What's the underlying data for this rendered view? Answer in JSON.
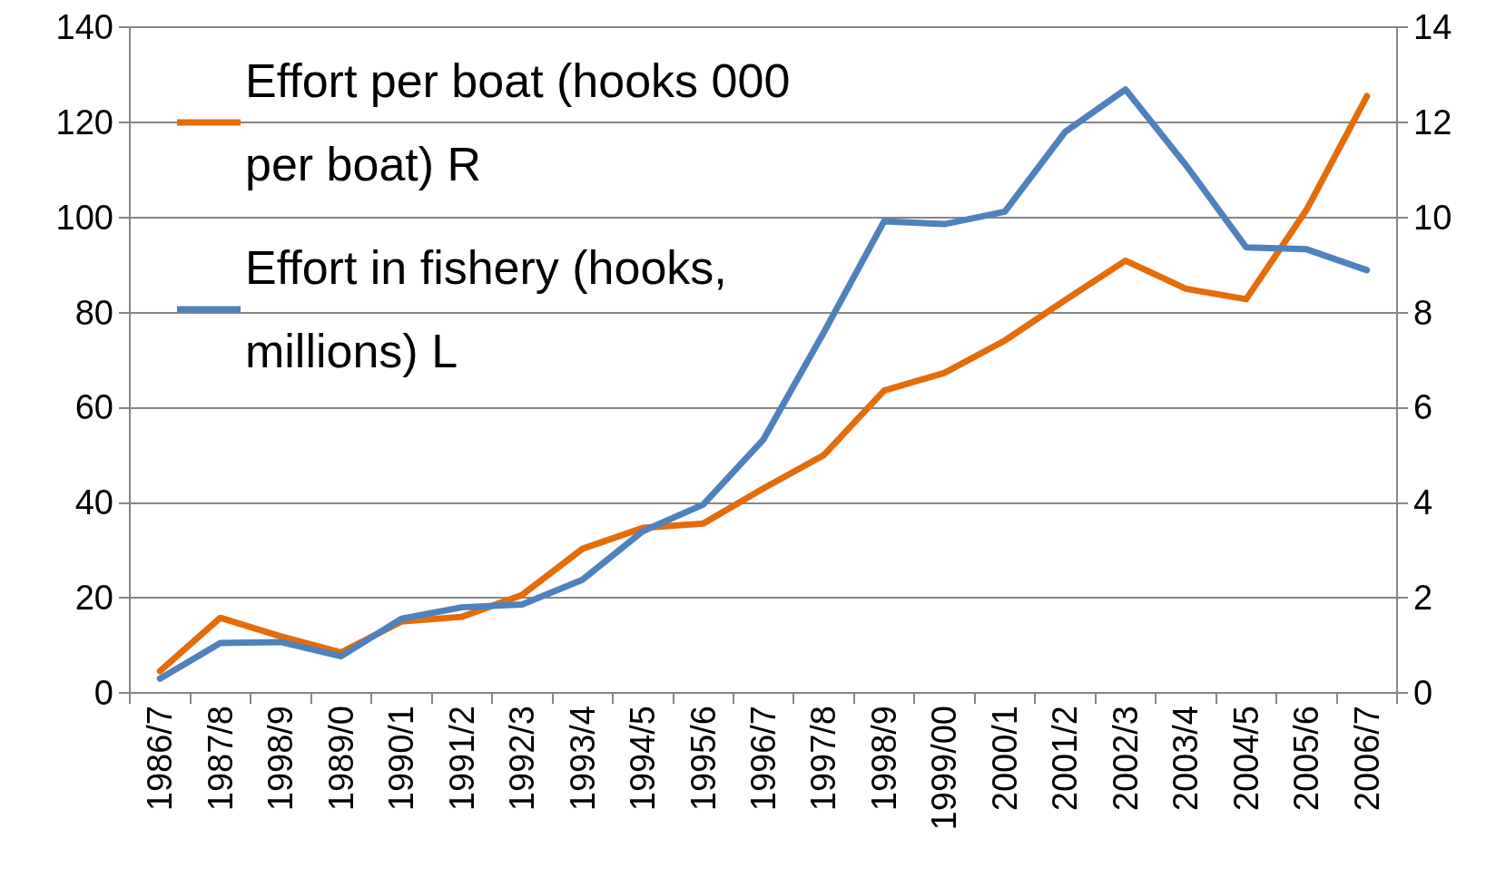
{
  "chart_data": {
    "type": "line",
    "categories": [
      "1986/7",
      "1987/8",
      "1998/9",
      "1989/0",
      "1990/1",
      "1991/2",
      "1992/3",
      "1993/4",
      "1994/5",
      "1995/6",
      "1996/7",
      "1997/8",
      "1998/9",
      "1999/00",
      "2000/1",
      "2001/2",
      "2002/3",
      "2003/4",
      "2004/5",
      "2005/6",
      "2006/7"
    ],
    "series": [
      {
        "name": "Effort per boat (hooks 000 per boat) R",
        "color": "#e46c0a",
        "axis": "y2",
        "values": [
          0.46,
          1.58,
          1.19,
          0.85,
          1.5,
          1.6,
          2.06,
          3.03,
          3.47,
          3.56,
          4.3,
          5.0,
          6.36,
          6.73,
          7.41,
          8.26,
          9.09,
          8.5,
          8.28,
          10.16,
          12.55
        ]
      },
      {
        "name": "Effort in fishery (hooks, millions) L",
        "color": "#4f81bd",
        "axis": "y",
        "values": [
          3,
          10.5,
          10.7,
          7.7,
          15.6,
          18,
          18.6,
          23.8,
          34,
          39.6,
          53.3,
          75.8,
          99.2,
          98.6,
          101.2,
          118,
          126.9,
          111,
          93.7,
          93.3,
          88.9
        ]
      }
    ],
    "ylim": [
      0,
      140
    ],
    "yticks": [
      0,
      20,
      40,
      60,
      80,
      100,
      120,
      140
    ],
    "y2lim": [
      0,
      14
    ],
    "y2ticks": [
      0,
      2,
      4,
      6,
      8,
      10,
      12,
      14
    ],
    "grid": "y",
    "legend": "top left",
    "marker": "none",
    "line_style": "solid"
  }
}
